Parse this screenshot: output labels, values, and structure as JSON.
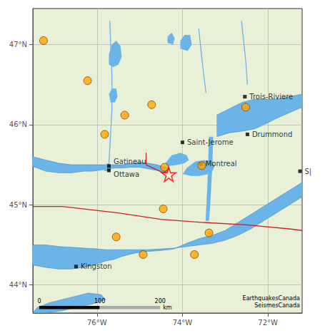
{
  "chart_data": {
    "type": "scatter",
    "xlim": [
      -77.5,
      -71.2
    ],
    "ylim": [
      43.65,
      47.45
    ],
    "xticks": [
      {
        "value": -76,
        "label": "76°W"
      },
      {
        "value": -74,
        "label": "74°W"
      },
      {
        "value": -72,
        "label": "72°W"
      }
    ],
    "yticks": [
      {
        "value": 44,
        "label": "44°N"
      },
      {
        "value": 45,
        "label": "45°N"
      },
      {
        "value": 46,
        "label": "46°N"
      },
      {
        "value": 47,
        "label": "47°N"
      }
    ],
    "grid": true,
    "grid_color": "#aaaaaa",
    "background": "#e8f0d8",
    "shapes": [
      {
        "type": "polygon",
        "color": "#6ab4e8",
        "edge": "#4a8fc4",
        "x": [
          -77.5,
          -77.4,
          -77.1,
          -76.8,
          -76.5,
          -76.2,
          -75.9,
          -75.8,
          -76.0,
          -76.2,
          -76.5,
          -76.8,
          -77.2,
          -77.5
        ],
        "y": [
          43.65,
          43.72,
          43.78,
          43.82,
          43.86,
          43.9,
          43.88,
          43.82,
          43.78,
          43.75,
          43.72,
          43.68,
          43.65,
          43.65
        ]
      },
      {
        "type": "band",
        "color": "#6ab4e8",
        "edge": "#4a8fc4",
        "x": [
          -77.5,
          -77.2,
          -76.9,
          -76.6,
          -76.3,
          -76.0,
          -75.8,
          -75.6,
          -75.4,
          -75.1,
          -74.8,
          -74.5,
          -74.2,
          -73.9,
          -73.6,
          -73.3,
          -73.0,
          -72.7,
          -72.4,
          -72.1,
          -71.8,
          -71.5,
          -71.2
        ],
        "y_low": [
          44.25,
          44.22,
          44.2,
          44.2,
          44.22,
          44.26,
          44.3,
          44.32,
          44.36,
          44.4,
          44.42,
          44.43,
          44.45,
          44.52,
          44.58,
          44.62,
          44.68,
          44.78,
          44.88,
          44.98,
          45.08,
          45.18,
          45.28
        ],
        "y_high": [
          44.5,
          44.5,
          44.48,
          44.47,
          44.46,
          44.45,
          44.44,
          44.44,
          44.44,
          44.44,
          44.44,
          44.45,
          44.46,
          44.48,
          44.5,
          44.52,
          44.56,
          44.62,
          44.7,
          44.8,
          44.9,
          45.0,
          45.1
        ]
      },
      {
        "type": "band",
        "color": "#6ab4e8",
        "edge": "#4a8fc4",
        "x": [
          -77.5,
          -77.2,
          -76.9,
          -76.6,
          -76.3,
          -76.1,
          -75.85,
          -75.6,
          -75.4,
          -75.2,
          -75.0,
          -74.8,
          -74.6,
          -74.35
        ],
        "y_low": [
          45.48,
          45.42,
          45.4,
          45.4,
          45.42,
          45.42,
          45.44,
          45.46,
          45.46,
          45.47,
          45.47,
          45.45,
          45.43,
          45.4
        ],
        "y_high": [
          45.6,
          45.56,
          45.52,
          45.5,
          45.5,
          45.5,
          45.5,
          45.5,
          45.5,
          45.52,
          45.53,
          45.52,
          45.5,
          45.46
        ]
      },
      {
        "type": "polygon",
        "color": "#6ab4e8",
        "x": [
          -73.95,
          -73.8,
          -73.6,
          -73.42,
          -73.3,
          -73.25,
          -73.3,
          -73.5,
          -73.7,
          -73.9,
          -74.0
        ],
        "y": [
          45.38,
          45.36,
          45.36,
          45.38,
          45.42,
          45.48,
          45.54,
          45.56,
          45.54,
          45.46,
          45.38
        ]
      },
      {
        "type": "polygon",
        "color": "#6ab4e8",
        "x": [
          -74.35,
          -74.1,
          -73.95,
          -73.85,
          -73.9,
          -74.05,
          -74.25,
          -74.4
        ],
        "y": [
          45.48,
          45.5,
          45.52,
          45.56,
          45.62,
          45.65,
          45.62,
          45.52
        ]
      },
      {
        "type": "polygon",
        "color": "#6ab4e8",
        "x": [
          -75.82,
          -75.72,
          -75.65,
          -75.72,
          -75.82,
          -75.88
        ],
        "y": [
          45.42,
          45.42,
          45.46,
          45.52,
          45.5,
          45.46
        ]
      },
      {
        "type": "polygon",
        "color": "#6ab4e8",
        "x": [
          -73.46,
          -73.44,
          -73.42,
          -73.4,
          -73.38,
          -73.28,
          -73.3,
          -73.33,
          -73.35,
          -73.38
        ],
        "y": [
          44.8,
          45.0,
          45.2,
          45.5,
          45.85,
          45.85,
          45.5,
          45.2,
          45.0,
          44.8
        ]
      },
      {
        "type": "band",
        "color": "#6ab4e8",
        "edge": "#4a8fc4",
        "x": [
          -73.2,
          -72.9,
          -72.6,
          -72.3,
          -72.1,
          -71.8,
          -71.5,
          -71.2
        ],
        "y_low": [
          45.85,
          45.9,
          45.92,
          45.95,
          46.0,
          46.08,
          46.15,
          46.22
        ],
        "y_high": [
          46.12,
          46.2,
          46.28,
          46.32,
          46.32,
          46.32,
          46.35,
          46.38
        ]
      },
      {
        "type": "polygon",
        "color": "#6ab4e8",
        "x": [
          -75.72,
          -75.62,
          -75.5,
          -75.42,
          -75.45,
          -75.55,
          -75.65,
          -75.72
        ],
        "y": [
          46.75,
          46.72,
          46.75,
          46.85,
          46.98,
          47.05,
          47.0,
          46.88
        ]
      },
      {
        "type": "polygon",
        "color": "#6ab4e8",
        "x": [
          -75.68,
          -75.58,
          -75.52,
          -75.55,
          -75.65,
          -75.72
        ],
        "y": [
          46.28,
          46.28,
          46.35,
          46.45,
          46.45,
          46.38
        ]
      },
      {
        "type": "polygon",
        "color": "#6ab4e8",
        "x": [
          -74.05,
          -73.88,
          -73.78,
          -73.82,
          -73.95,
          -74.05
        ],
        "y": [
          46.95,
          46.92,
          47.0,
          47.12,
          47.12,
          47.05
        ]
      },
      {
        "type": "polygon",
        "color": "#6ab4e8",
        "x": [
          -74.35,
          -74.22,
          -74.18,
          -74.25,
          -74.35
        ],
        "y": [
          47.02,
          47.0,
          47.08,
          47.15,
          47.1
        ]
      },
      {
        "type": "line",
        "color": "#6ab4e8",
        "x": [
          -75.7,
          -75.68,
          -75.65,
          -75.65,
          -75.68,
          -75.72
        ],
        "y": [
          47.3,
          47.0,
          46.6,
          46.2,
          45.9,
          45.52
        ]
      },
      {
        "type": "line",
        "color": "#6ab4e8",
        "x": [
          -73.62,
          -73.58,
          -73.52,
          -73.45
        ],
        "y": [
          47.2,
          47.0,
          46.7,
          46.4
        ]
      },
      {
        "type": "line",
        "color": "#6ab4e8",
        "x": [
          -72.62,
          -72.58,
          -72.52,
          -72.48
        ],
        "y": [
          47.3,
          47.1,
          46.8,
          46.5
        ]
      },
      {
        "type": "line",
        "color": "#cc2222",
        "x": [
          -77.5,
          -76.8,
          -75.5,
          -74.5,
          -73.5,
          -72.5,
          -71.5,
          -71.2
        ],
        "y": [
          44.98,
          44.98,
          44.9,
          44.82,
          44.78,
          44.75,
          44.7,
          44.68
        ]
      },
      {
        "type": "line",
        "color": "#cc2222",
        "x": [
          -74.85,
          -74.85,
          -74.45,
          -74.3
        ],
        "y": [
          45.65,
          45.5,
          45.4,
          45.45
        ]
      }
    ],
    "series": [
      {
        "type": "scatter",
        "marker": "circle",
        "color": "#FFA500",
        "edge_color": "#884400",
        "x": [
          -77.25,
          -76.22,
          -75.82,
          -75.35,
          -74.72,
          -72.52,
          -74.42,
          -73.55,
          -74.45,
          -75.55,
          -74.92,
          -73.72,
          -73.38
        ],
        "y": [
          47.05,
          46.55,
          45.88,
          46.12,
          46.25,
          46.22,
          45.47,
          45.49,
          44.95,
          44.6,
          44.38,
          44.38,
          44.65
        ]
      },
      {
        "type": "scatter",
        "marker": "star",
        "color": "red",
        "x": [
          -74.32
        ],
        "y": [
          45.38
        ]
      },
      {
        "type": "scatter",
        "marker": "square",
        "color": "black",
        "labels": [
          "Gatineau",
          "Ottawa",
          "Saint-Jerome",
          "Montreal",
          "Kingston",
          "Trois-Riviere",
          "Drummond",
          "S|"
        ],
        "x": [
          -75.72,
          -75.72,
          -74.0,
          -73.57,
          -76.49,
          -72.54,
          -72.48,
          -71.25
        ],
        "y": [
          45.485,
          45.43,
          45.78,
          45.51,
          44.23,
          46.35,
          45.88,
          45.42
        ]
      }
    ],
    "scale_bar": {
      "x": [
        -77.35,
        -75.9357864376269,
        -74.52157287525381
      ],
      "y": 43.72,
      "half_height": 0.02,
      "colors": [
        "black",
        "#aaaaaa"
      ],
      "labels": [
        "0",
        "100",
        "200"
      ],
      "unit": "km"
    },
    "annotations": [
      {
        "text": "EarthquakesCanada\nSeismesCanada",
        "x": -71.25,
        "y": 43.7
      }
    ]
  }
}
